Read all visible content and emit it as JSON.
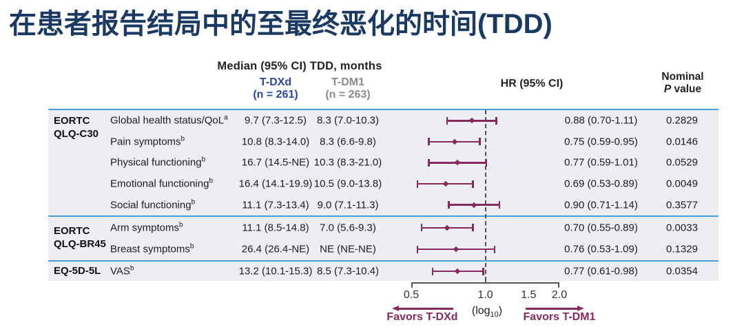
{
  "title": "在患者报告结局中的至最终恶化的时间(TDD)",
  "header": {
    "median_group": "Median (95% CI) TDD, months",
    "tdxd_name": "T-DXd",
    "tdxd_n": "(n = 261)",
    "tdm1_name": "T-DM1",
    "tdm1_n": "(n = 263)",
    "hr": "HR (95% CI)",
    "nominal": "Nominal",
    "p_italic": "P",
    "p_rest": "value"
  },
  "sections": [
    {
      "group_lines": [
        "EORTC",
        "QLQ-C30"
      ],
      "rows": [
        {
          "label": "Global health status/QoL",
          "sup": "a",
          "tdxd": "9.7 (7.3-12.5)",
          "tdm1": "8.3 (7.0-10.3)",
          "hr": 0.88,
          "lo": 0.7,
          "hi": 1.11,
          "hr_text": "0.88 (0.70-1.11)",
          "p": "0.2829"
        },
        {
          "label": "Pain symptoms",
          "sup": "b",
          "tdxd": "10.8 (8.3-14.0)",
          "tdm1": "8.3 (6.6-9.8)",
          "hr": 0.75,
          "lo": 0.59,
          "hi": 0.95,
          "hr_text": "0.75 (0.59-0.95)",
          "p": "0.0146"
        },
        {
          "label": "Physical functioning",
          "sup": "b",
          "tdxd": "16.7 (14.5-NE)",
          "tdm1": "10.3 (8.3-21.0)",
          "hr": 0.77,
          "lo": 0.59,
          "hi": 1.01,
          "hr_text": "0.77 (0.59-1.01)",
          "p": "0.0529"
        },
        {
          "label": "Emotional functioning",
          "sup": "b",
          "tdxd": "16.4 (14.1-19.9)",
          "tdm1": "10.5 (9.0-13.8)",
          "hr": 0.69,
          "lo": 0.53,
          "hi": 0.89,
          "hr_text": "0.69 (0.53-0.89)",
          "p": "0.0049"
        },
        {
          "label": "Social functioning",
          "sup": "b",
          "tdxd": "11.1 (7.3-13.4)",
          "tdm1": "9.0 (7.1-11.3)",
          "hr": 0.9,
          "lo": 0.71,
          "hi": 1.14,
          "hr_text": "0.90 (0.71-1.14)",
          "p": "0.3577"
        }
      ]
    },
    {
      "group_lines": [
        "EORTC",
        "QLQ-BR45"
      ],
      "rows": [
        {
          "label": "Arm symptoms",
          "sup": "b",
          "tdxd": "11.1 (8.5-14.8)",
          "tdm1": "7.0 (5.6-9.3)",
          "hr": 0.7,
          "lo": 0.55,
          "hi": 0.89,
          "hr_text": "0.70 (0.55-0.89)",
          "p": "0.0033"
        },
        {
          "label": "Breast symptoms",
          "sup": "b",
          "tdxd": "26.4 (26.4-NE)",
          "tdm1": "NE (NE-NE)",
          "hr": 0.76,
          "lo": 0.53,
          "hi": 1.09,
          "hr_text": "0.76 (0.53-1.09)",
          "p": "0.1329"
        }
      ]
    },
    {
      "group_lines": [
        "EQ-5D-5L"
      ],
      "rows": [
        {
          "label": "VAS",
          "sup": "b",
          "tdxd": "13.2 (10.1-15.3)",
          "tdm1": "8.5 (7.3-10.4)",
          "hr": 0.77,
          "lo": 0.61,
          "hi": 0.98,
          "hr_text": "0.77 (0.61-0.98)",
          "p": "0.0354"
        }
      ]
    }
  ],
  "axis": {
    "tick_labels": [
      "0.5",
      "1.0",
      "1.5",
      "2.0"
    ],
    "scale_open": "(log",
    "scale_sub": "10",
    "scale_close": ")",
    "favors_left": "Favors T-DXd",
    "favors_right": "Favors T-DM1"
  },
  "colors": {
    "title_navy": "#1a3a63",
    "tdxd_blue": "#2c46a0",
    "tdm1_gray": "#8a8a8a",
    "marker_maroon": "#862a5e",
    "favors_maroon": "#8b2860",
    "divider_blue": "#45a0dc",
    "band_bg": "#eceef4",
    "axis_gray": "#56554b"
  },
  "chart_data": {
    "type": "scatter",
    "subtype": "forest-plot-hazard-ratio",
    "title": "在患者报告结局中的至最终恶化的时间(TDD)",
    "xlabel": "(log10)",
    "x_scale": "log10",
    "xlim": [
      0.5,
      2.0
    ],
    "x_ticks": [
      0.5,
      1.0,
      1.5,
      2.0
    ],
    "reference_line_x": 1.0,
    "legend_left": "Favors T-DXd",
    "legend_right": "Favors T-DM1",
    "series": [
      {
        "name": "EORTC QLQ-C30 — Global health status/QoL",
        "hr": 0.88,
        "ci": [
          0.7,
          1.11
        ],
        "p": "0.2829"
      },
      {
        "name": "EORTC QLQ-C30 — Pain symptoms",
        "hr": 0.75,
        "ci": [
          0.59,
          0.95
        ],
        "p": "0.0146"
      },
      {
        "name": "EORTC QLQ-C30 — Physical functioning",
        "hr": 0.77,
        "ci": [
          0.59,
          1.01
        ],
        "p": "0.0529"
      },
      {
        "name": "EORTC QLQ-C30 — Emotional functioning",
        "hr": 0.69,
        "ci": [
          0.53,
          0.89
        ],
        "p": "0.0049"
      },
      {
        "name": "EORTC QLQ-C30 — Social functioning",
        "hr": 0.9,
        "ci": [
          0.71,
          1.14
        ],
        "p": "0.3577"
      },
      {
        "name": "EORTC QLQ-BR45 — Arm symptoms",
        "hr": 0.7,
        "ci": [
          0.55,
          0.89
        ],
        "p": "0.0033"
      },
      {
        "name": "EORTC QLQ-BR45 — Breast symptoms",
        "hr": 0.76,
        "ci": [
          0.53,
          1.09
        ],
        "p": "0.1329"
      },
      {
        "name": "EQ-5D-5L — VAS",
        "hr": 0.77,
        "ci": [
          0.61,
          0.98
        ],
        "p": "0.0354"
      }
    ]
  }
}
